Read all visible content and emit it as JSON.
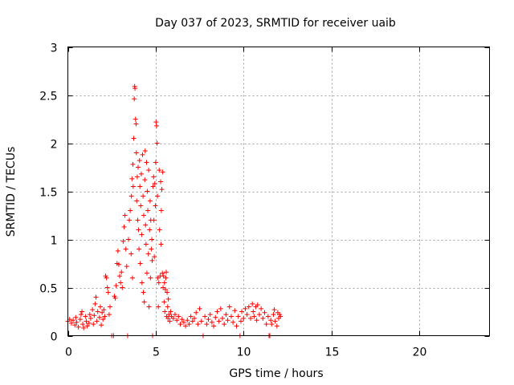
{
  "chart_data": {
    "type": "scatter",
    "title": "Day 037 of 2023, SRMTID for receiver uaib",
    "xlabel": "GPS time / hours",
    "ylabel": "SRMTID / TECUs",
    "xlim": [
      0,
      24
    ],
    "ylim": [
      0,
      3
    ],
    "xticks": [
      0,
      5,
      10,
      15,
      20
    ],
    "xtick_labels": [
      "0",
      "5",
      "10",
      "15",
      "20"
    ],
    "yticks": [
      0,
      0.5,
      1,
      1.5,
      2,
      2.5,
      3
    ],
    "ytick_labels": [
      "0",
      "0.5",
      "1",
      "1.5",
      "2",
      "2.5",
      "3"
    ],
    "grid": true,
    "marker": "plus",
    "series": [
      {
        "name": "SRMTID",
        "color": "#ff0000",
        "points": [
          [
            0.0,
            0.15
          ],
          [
            0.1,
            0.17
          ],
          [
            0.2,
            0.13
          ],
          [
            0.3,
            0.16
          ],
          [
            0.4,
            0.11
          ],
          [
            0.45,
            0.19
          ],
          [
            0.5,
            0.14
          ],
          [
            0.6,
            0.09
          ],
          [
            0.7,
            0.17
          ],
          [
            0.75,
            0.22
          ],
          [
            0.8,
            0.25
          ],
          [
            0.85,
            0.12
          ],
          [
            0.9,
            0.08
          ],
          [
            1.0,
            0.2
          ],
          [
            1.05,
            0.15
          ],
          [
            1.1,
            0.1
          ],
          [
            1.2,
            0.13
          ],
          [
            1.25,
            0.22
          ],
          [
            1.3,
            0.18
          ],
          [
            1.4,
            0.27
          ],
          [
            1.45,
            0.12
          ],
          [
            1.5,
            0.21
          ],
          [
            1.55,
            0.33
          ],
          [
            1.6,
            0.4
          ],
          [
            1.65,
            0.15
          ],
          [
            1.7,
            0.25
          ],
          [
            1.8,
            0.19
          ],
          [
            1.85,
            0.3
          ],
          [
            1.9,
            0.11
          ],
          [
            1.95,
            0.24
          ],
          [
            2.0,
            0.17
          ],
          [
            2.05,
            0.27
          ],
          [
            2.1,
            0.2
          ],
          [
            2.15,
            0.62
          ],
          [
            2.2,
            0.6
          ],
          [
            2.25,
            0.5
          ],
          [
            2.3,
            0.45
          ],
          [
            2.35,
            0.22
          ],
          [
            2.4,
            0.3
          ],
          [
            2.5,
            0.0
          ],
          [
            2.6,
            0.0
          ],
          [
            2.65,
            0.41
          ],
          [
            2.7,
            0.39
          ],
          [
            2.75,
            0.52
          ],
          [
            2.8,
            0.75
          ],
          [
            2.85,
            0.88
          ],
          [
            2.9,
            0.74
          ],
          [
            2.95,
            0.62
          ],
          [
            3.0,
            0.55
          ],
          [
            3.05,
            0.66
          ],
          [
            3.1,
            0.5
          ],
          [
            3.15,
            0.98
          ],
          [
            3.2,
            1.13
          ],
          [
            3.25,
            1.25
          ],
          [
            3.3,
            0.9
          ],
          [
            3.35,
            0.72
          ],
          [
            3.4,
            0.0
          ],
          [
            3.45,
            1.0
          ],
          [
            3.5,
            1.2
          ],
          [
            3.55,
            1.3
          ],
          [
            3.6,
            0.85
          ],
          [
            3.62,
            1.45
          ],
          [
            3.65,
            1.63
          ],
          [
            3.68,
            0.6
          ],
          [
            3.7,
            1.78
          ],
          [
            3.72,
            1.55
          ],
          [
            3.75,
            2.05
          ],
          [
            3.78,
            2.46
          ],
          [
            3.8,
            2.59
          ],
          [
            3.82,
            2.57
          ],
          [
            3.85,
            2.25
          ],
          [
            3.88,
            2.2
          ],
          [
            3.9,
            1.9
          ],
          [
            3.92,
            1.4
          ],
          [
            3.95,
            1.65
          ],
          [
            3.98,
            1.2
          ],
          [
            4.0,
            1.75
          ],
          [
            4.02,
            1.1
          ],
          [
            4.05,
            0.9
          ],
          [
            4.08,
            1.82
          ],
          [
            4.1,
            1.55
          ],
          [
            4.12,
            0.75
          ],
          [
            4.15,
            1.35
          ],
          [
            4.18,
            1.68
          ],
          [
            4.2,
            1.05
          ],
          [
            4.22,
            0.55
          ],
          [
            4.25,
            1.88
          ],
          [
            4.28,
            1.45
          ],
          [
            4.3,
            0.45
          ],
          [
            4.32,
            1.25
          ],
          [
            4.35,
            0.35
          ],
          [
            4.38,
            1.62
          ],
          [
            4.4,
            1.92
          ],
          [
            4.42,
            1.15
          ],
          [
            4.45,
            0.95
          ],
          [
            4.48,
            1.8
          ],
          [
            4.5,
            0.65
          ],
          [
            4.52,
            1.5
          ],
          [
            4.55,
            1.3
          ],
          [
            4.58,
            0.85
          ],
          [
            4.6,
            1.72
          ],
          [
            4.62,
            0.3
          ],
          [
            4.65,
            1.1
          ],
          [
            4.68,
            1.4
          ],
          [
            4.7,
            0.6
          ],
          [
            4.72,
            1.2
          ],
          [
            4.75,
            0.9
          ],
          [
            4.78,
            1.0
          ],
          [
            4.8,
            0.78
          ],
          [
            4.82,
            0.0
          ],
          [
            4.85,
            1.55
          ],
          [
            4.88,
            1.65
          ],
          [
            4.9,
            1.2
          ],
          [
            4.92,
            0.82
          ],
          [
            4.95,
            1.58
          ],
          [
            4.98,
            1.35
          ],
          [
            5.0,
            1.8
          ],
          [
            5.02,
            2.22
          ],
          [
            5.05,
            2.18
          ],
          [
            5.08,
            2.0
          ],
          [
            5.1,
            1.45
          ],
          [
            5.12,
            0.6
          ],
          [
            5.15,
            0.3
          ],
          [
            5.18,
            0.55
          ],
          [
            5.2,
            1.72
          ],
          [
            5.22,
            1.1
          ],
          [
            5.25,
            0.62
          ],
          [
            5.28,
            1.6
          ],
          [
            5.3,
            0.95
          ],
          [
            5.32,
            1.3
          ],
          [
            5.35,
            1.52
          ],
          [
            5.38,
            0.65
          ],
          [
            5.4,
            1.7
          ],
          [
            5.42,
            0.5
          ],
          [
            5.45,
            0.62
          ],
          [
            5.48,
            0.35
          ],
          [
            5.5,
            0.55
          ],
          [
            5.52,
            0.25
          ],
          [
            5.55,
            0.48
          ],
          [
            5.58,
            0.6
          ],
          [
            5.6,
            0.66
          ],
          [
            5.62,
            0.2
          ],
          [
            5.65,
            0.45
          ],
          [
            5.68,
            0.3
          ],
          [
            5.7,
            0.18
          ],
          [
            5.72,
            0.38
          ],
          [
            5.75,
            0.22
          ],
          [
            5.8,
            0.15
          ],
          [
            5.85,
            0.25
          ],
          [
            5.9,
            0.2
          ],
          [
            6.0,
            0.18
          ],
          [
            6.1,
            0.22
          ],
          [
            6.2,
            0.16
          ],
          [
            6.3,
            0.2
          ],
          [
            6.4,
            0.12
          ],
          [
            6.5,
            0.17
          ],
          [
            6.6,
            0.14
          ],
          [
            6.7,
            0.1
          ],
          [
            6.8,
            0.16
          ],
          [
            6.9,
            0.12
          ],
          [
            7.0,
            0.2
          ],
          [
            7.1,
            0.15
          ],
          [
            7.2,
            0.18
          ],
          [
            7.3,
            0.24
          ],
          [
            7.4,
            0.12
          ],
          [
            7.5,
            0.28
          ],
          [
            7.6,
            0.15
          ],
          [
            7.7,
            0.0
          ],
          [
            7.8,
            0.2
          ],
          [
            7.9,
            0.12
          ],
          [
            8.0,
            0.17
          ],
          [
            8.1,
            0.22
          ],
          [
            8.2,
            0.14
          ],
          [
            8.3,
            0.1
          ],
          [
            8.4,
            0.19
          ],
          [
            8.5,
            0.25
          ],
          [
            8.6,
            0.15
          ],
          [
            8.7,
            0.28
          ],
          [
            8.8,
            0.18
          ],
          [
            8.9,
            0.12
          ],
          [
            9.0,
            0.22
          ],
          [
            9.1,
            0.16
          ],
          [
            9.2,
            0.3
          ],
          [
            9.3,
            0.2
          ],
          [
            9.4,
            0.14
          ],
          [
            9.5,
            0.26
          ],
          [
            9.6,
            0.1
          ],
          [
            9.7,
            0.2
          ],
          [
            9.8,
            0.0
          ],
          [
            9.85,
            0.15
          ],
          [
            9.9,
            0.25
          ],
          [
            10.0,
            0.18
          ],
          [
            10.1,
            0.28
          ],
          [
            10.2,
            0.22
          ],
          [
            10.3,
            0.3
          ],
          [
            10.4,
            0.18
          ],
          [
            10.5,
            0.33
          ],
          [
            10.55,
            0.25
          ],
          [
            10.6,
            0.2
          ],
          [
            10.7,
            0.3
          ],
          [
            10.75,
            0.16
          ],
          [
            10.8,
            0.32
          ],
          [
            10.9,
            0.22
          ],
          [
            11.0,
            0.28
          ],
          [
            11.1,
            0.18
          ],
          [
            11.2,
            0.24
          ],
          [
            11.3,
            0.12
          ],
          [
            11.4,
            0.2
          ],
          [
            11.45,
            0.0
          ],
          [
            11.5,
            0.0
          ],
          [
            11.55,
            0.16
          ],
          [
            11.6,
            0.12
          ],
          [
            11.7,
            0.22
          ],
          [
            11.75,
            0.27
          ],
          [
            11.8,
            0.15
          ],
          [
            11.9,
            0.1
          ],
          [
            11.95,
            0.24
          ],
          [
            12.0,
            0.18
          ],
          [
            12.05,
            0.22
          ],
          [
            12.1,
            0.2
          ]
        ]
      }
    ]
  }
}
